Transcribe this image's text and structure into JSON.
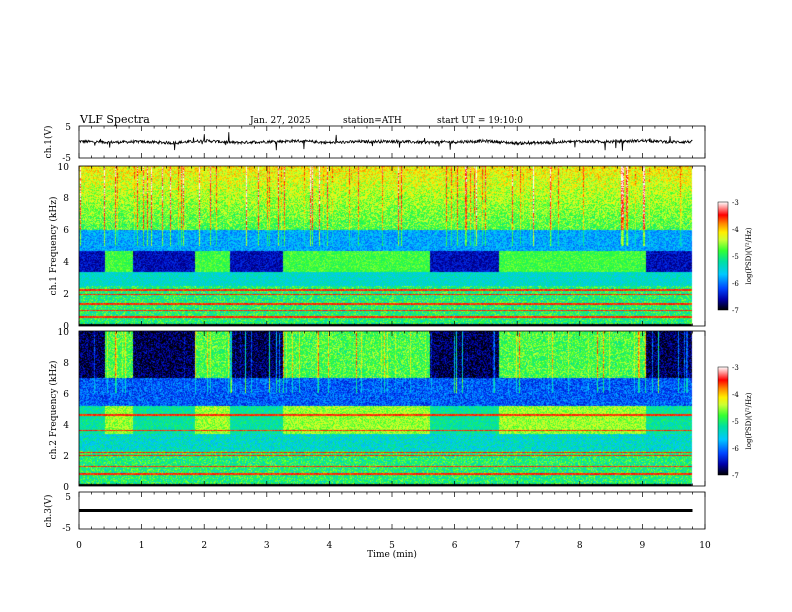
{
  "header": {
    "title": "VLF Spectra",
    "date": "Jan. 27, 2025",
    "station": "station=ATH",
    "start": "start UT = 19:10:0"
  },
  "colors": {
    "trace": "#000000",
    "colormap": [
      "#000000",
      "#0000a8",
      "#0044ff",
      "#00c8ff",
      "#00e0a0",
      "#33ff33",
      "#ccff33",
      "#ffee00",
      "#ff8800",
      "#ff0000",
      "#ff9999",
      "#ffffff"
    ]
  },
  "chart_data": [
    {
      "type": "line",
      "name": "ch1-waveform",
      "ylabel": "ch.1(V)",
      "ylim": [
        -5,
        5
      ],
      "yticks": [
        "5",
        "-5"
      ],
      "x": [
        0,
        0.5,
        1.0,
        1.5,
        2.0,
        2.5,
        3.0,
        3.5,
        4.0,
        4.5,
        5.0,
        5.5,
        6.0,
        6.5,
        7.0,
        7.5,
        8.0,
        8.5,
        9.0,
        9.5,
        9.8
      ],
      "values": [
        0.2,
        -0.1,
        0.1,
        -0.3,
        0.4,
        -0.2,
        0.1,
        0.3,
        -0.2,
        0.1,
        0.2,
        -0.1,
        0.0,
        0.3,
        -0.4,
        -0.2,
        0.2,
        0.1,
        0.4,
        0.0,
        0.1
      ],
      "xlim": [
        0,
        10
      ]
    },
    {
      "type": "heatmap",
      "name": "ch1-spectrogram",
      "ylabel": "ch.1 Frequency (kHz)",
      "ylim": [
        0,
        10
      ],
      "yticks": [
        "0",
        "2",
        "4",
        "6",
        "8",
        "10"
      ],
      "xlim": [
        0,
        10
      ],
      "data_xmax": 9.8,
      "colorbar": {
        "label": "log(PSD)(V²/Hz)",
        "range": [
          -7,
          -3
        ],
        "ticks": [
          "-3",
          "-4",
          "-5",
          "-6",
          "-7"
        ]
      },
      "bright_intervals_min": [
        [
          0.4,
          0.85
        ],
        [
          1.85,
          2.4
        ],
        [
          3.25,
          5.6
        ],
        [
          6.7,
          9.05
        ]
      ],
      "bright_band_khz": [
        3.5,
        4.5
      ],
      "lines_khz": [
        0.6,
        1.0,
        1.4,
        2.0,
        2.3
      ]
    },
    {
      "type": "heatmap",
      "name": "ch2-spectrogram",
      "ylabel": "ch.2 Frequency (kHz)",
      "ylim": [
        0,
        10
      ],
      "yticks": [
        "0",
        "2",
        "4",
        "6",
        "8",
        "10"
      ],
      "xlim": [
        0,
        10
      ],
      "data_xmax": 9.8,
      "colorbar": {
        "label": "log(PSD)(V²/Hz)",
        "range": [
          -7,
          -3
        ],
        "ticks": [
          "-3",
          "-4",
          "-5",
          "-6",
          "-7"
        ]
      },
      "bright_intervals_min": [
        [
          0.4,
          0.85
        ],
        [
          1.85,
          2.4
        ],
        [
          3.25,
          5.6
        ],
        [
          6.7,
          9.05
        ]
      ],
      "bright_band_khz": [
        3.5,
        4.5
      ],
      "lines_khz": [
        0.8,
        1.3,
        2.0,
        2.2,
        3.6,
        4.6
      ]
    },
    {
      "type": "line",
      "name": "ch3-waveform",
      "ylabel": "ch.3(V)",
      "ylim": [
        -5,
        5
      ],
      "yticks": [
        "5",
        "-5"
      ],
      "x": [
        0,
        9.8
      ],
      "values": [
        0,
        0
      ],
      "xlim": [
        0,
        10
      ]
    }
  ],
  "xaxis": {
    "label": "Time (min)",
    "ticks": [
      "0",
      "1",
      "2",
      "3",
      "4",
      "5",
      "6",
      "7",
      "8",
      "9",
      "10"
    ]
  }
}
